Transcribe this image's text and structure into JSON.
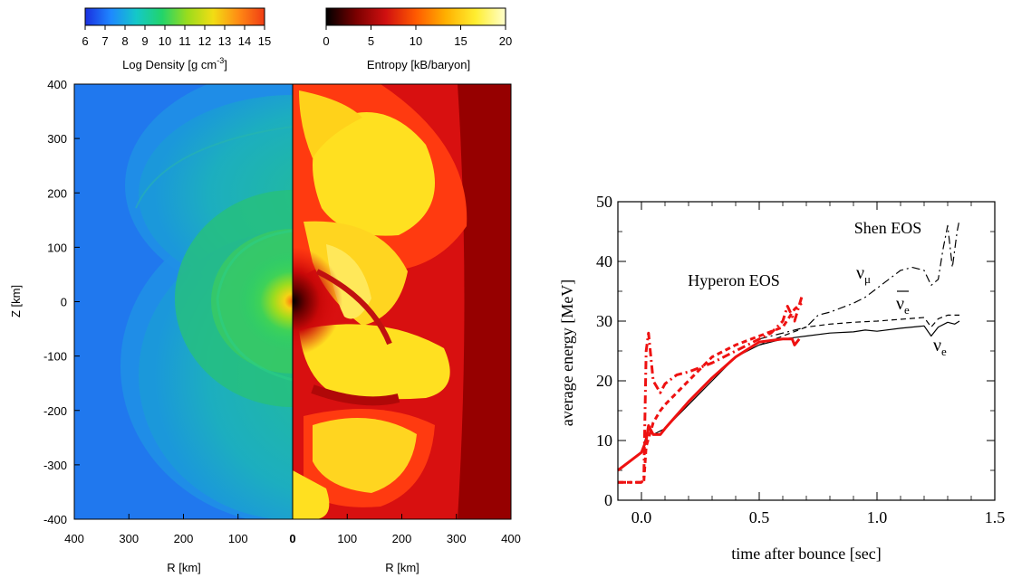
{
  "colorbars": {
    "density": {
      "ticks": [
        "6",
        "7",
        "8",
        "9",
        "10",
        "11",
        "12",
        "13",
        "14",
        "15"
      ],
      "label": "Log Density [g cm",
      "label_sup": "-3",
      "label_close": "]",
      "range": [
        6,
        15
      ],
      "colors": [
        "#1a2fe0",
        "#1e88ff",
        "#14c8c8",
        "#22d46a",
        "#9bdc1c",
        "#f2dd14",
        "#ff8a14",
        "#f03c14"
      ]
    },
    "entropy": {
      "ticks": [
        "0",
        "5",
        "10",
        "15",
        "20"
      ],
      "label": "Entropy [kB/baryon]",
      "range": [
        0,
        20
      ],
      "colors": [
        "#000000",
        "#7a0000",
        "#d01010",
        "#ff5a00",
        "#ffb000",
        "#ffee30",
        "#ffffcc"
      ]
    }
  },
  "left_panel": {
    "y_axis_label": "Z [km]",
    "y_ticks": [
      "400",
      "300",
      "200",
      "100",
      "0",
      "-100",
      "-200",
      "-300",
      "-400"
    ],
    "x_label_left": "R [km]",
    "x_label_right": "R [km]",
    "x_ticks_left": [
      "400",
      "300",
      "200",
      "100"
    ],
    "x_tick_center": "0",
    "x_ticks_right": [
      "100",
      "200",
      "300",
      "400"
    ],
    "density_background": "#2078ee",
    "entropy_background": "#960000"
  },
  "chart_data": {
    "type": "line",
    "xlabel": "time after bounce [sec]",
    "ylabel": "average energy [MeV]",
    "xlim": [
      -0.1,
      1.5
    ],
    "ylim": [
      0,
      50
    ],
    "x_ticks": [
      "0.0",
      "0.5",
      "1.0",
      "1.5"
    ],
    "y_ticks": [
      "0",
      "10",
      "20",
      "30",
      "40",
      "50"
    ],
    "annotations": {
      "shen": "Shen EOS",
      "hyperon": "Hyperon EOS",
      "nu_mu": "ν",
      "nu_mu_sub": "μ",
      "nu_ebar": "ν",
      "nu_ebar_sub": "e",
      "nu_e": "ν",
      "nu_e_sub": "e"
    },
    "series": [
      {
        "style": "solid",
        "color": "#000000",
        "x": [
          -0.1,
          0.0,
          0.03,
          0.05,
          0.1,
          0.2,
          0.3,
          0.4,
          0.5,
          0.6,
          0.7,
          0.8,
          0.9,
          0.95,
          1.0,
          1.1,
          1.2,
          1.23,
          1.26,
          1.3,
          1.33,
          1.35
        ],
        "y": [
          5,
          8,
          12,
          11,
          12,
          16,
          20,
          24,
          26,
          27,
          27.5,
          28,
          28.2,
          28.5,
          28.3,
          28.8,
          29.2,
          27.5,
          29,
          29.8,
          29.5,
          30
        ]
      },
      {
        "style": "dashed",
        "color": "#000000",
        "x": [
          0.5,
          0.6,
          0.7,
          0.8,
          0.9,
          1.0,
          1.1,
          1.2,
          1.23,
          1.26,
          1.3,
          1.35
        ],
        "y": [
          26,
          27.5,
          29,
          29.5,
          29.8,
          30,
          30.3,
          30.6,
          29,
          30.4,
          31,
          31
        ]
      },
      {
        "style": "dashdot",
        "color": "#000000",
        "x": [
          0.5,
          0.6,
          0.7,
          0.75,
          0.8,
          0.9,
          0.95,
          1.0,
          1.05,
          1.1,
          1.15,
          1.2,
          1.23,
          1.26,
          1.28,
          1.3,
          1.32,
          1.34,
          1.35
        ],
        "y": [
          27,
          28,
          29,
          31,
          31.5,
          33,
          34,
          35.5,
          37,
          38.5,
          39,
          38.5,
          36,
          37,
          42,
          46,
          39,
          45,
          47
        ]
      },
      {
        "style": "solid",
        "color": "#ee1111",
        "x": [
          -0.1,
          0.0,
          0.02,
          0.03,
          0.05,
          0.08,
          0.1,
          0.2,
          0.3,
          0.4,
          0.5,
          0.6,
          0.64,
          0.65,
          0.67
        ],
        "y": [
          5,
          8,
          10,
          12.5,
          11,
          11,
          12,
          16.5,
          20.5,
          24,
          26.5,
          27,
          27,
          26,
          27
        ]
      },
      {
        "style": "dashed",
        "color": "#ee1111",
        "x": [
          -0.1,
          0.0,
          0.01,
          0.02,
          0.05,
          0.08,
          0.1,
          0.2,
          0.3,
          0.4,
          0.5,
          0.6,
          0.65,
          0.68
        ],
        "y": [
          3,
          3,
          3,
          9,
          13,
          15,
          16,
          20,
          24,
          26,
          27.5,
          29,
          32,
          33
        ]
      },
      {
        "style": "dashdot",
        "color": "#ee1111",
        "x": [
          -0.1,
          0.0,
          0.01,
          0.02,
          0.03,
          0.05,
          0.08,
          0.1,
          0.15,
          0.2,
          0.3,
          0.4,
          0.5,
          0.55,
          0.6,
          0.62,
          0.65,
          0.68
        ],
        "y": [
          3,
          3,
          3.5,
          25,
          28,
          20,
          18,
          19.5,
          21,
          21.5,
          23,
          25,
          27,
          28,
          30,
          32.5,
          30,
          34
        ]
      }
    ]
  }
}
